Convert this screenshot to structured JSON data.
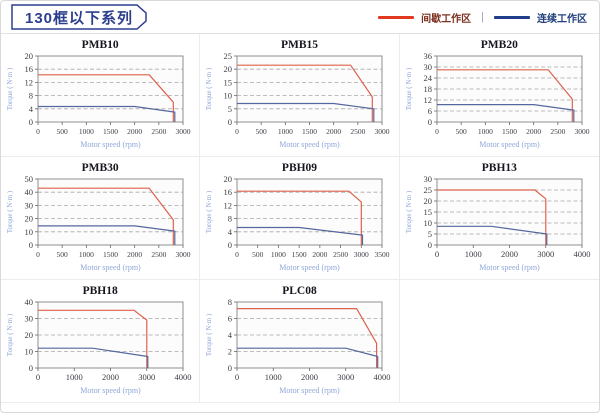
{
  "header": {
    "title": "130框以下系列",
    "legend": [
      {
        "key": "intermittent",
        "label": "间歇工作区",
        "color": "#e03a20"
      },
      {
        "key": "continuous",
        "label": "连续工作区",
        "color": "#1f3e8c"
      }
    ],
    "legend_separator": "|"
  },
  "colors": {
    "chart_red": "#dd614c",
    "chart_blue": "#55689d",
    "axis_label_blue": "#8ea6d8",
    "title_navy": "#2c3f8f"
  },
  "chart_data": [
    {
      "type": "line",
      "title": "PMB10",
      "xlabel": "Motor speed (rpm)",
      "ylabel": "Torque ( N·m )",
      "xlim": [
        0,
        3000
      ],
      "ylim": [
        0,
        20
      ],
      "x_ticks": [
        0,
        500,
        1000,
        1500,
        2000,
        2500,
        3000
      ],
      "y_ticks": [
        0,
        4,
        8,
        12,
        16,
        20
      ],
      "series": [
        {
          "key": "intermittent",
          "name": "间歇工作区",
          "color": "#dd614c",
          "points": [
            [
              0,
              14.3
            ],
            [
              2300,
              14.3
            ],
            [
              2800,
              6
            ],
            [
              2800,
              0
            ]
          ]
        },
        {
          "key": "continuous",
          "name": "连续工作区",
          "color": "#55689d",
          "points": [
            [
              0,
              4.7
            ],
            [
              2000,
              4.7
            ],
            [
              2830,
              3
            ],
            [
              2830,
              0
            ]
          ]
        }
      ]
    },
    {
      "type": "line",
      "title": "PMB15",
      "xlabel": "Motor speed (rpm)",
      "ylabel": "Torque ( N·m )",
      "xlim": [
        0,
        3000
      ],
      "ylim": [
        0,
        25
      ],
      "x_ticks": [
        0,
        500,
        1000,
        1500,
        2000,
        2500,
        3000
      ],
      "y_ticks": [
        0,
        5,
        10,
        15,
        20,
        25
      ],
      "series": [
        {
          "key": "intermittent",
          "name": "间歇工作区",
          "color": "#dd614c",
          "points": [
            [
              0,
              21.5
            ],
            [
              2350,
              21.5
            ],
            [
              2800,
              9.5
            ],
            [
              2800,
              0
            ]
          ]
        },
        {
          "key": "continuous",
          "name": "连续工作区",
          "color": "#55689d",
          "points": [
            [
              0,
              7
            ],
            [
              2000,
              7
            ],
            [
              2830,
              5
            ],
            [
              2830,
              0
            ]
          ]
        }
      ]
    },
    {
      "type": "line",
      "title": "PMB20",
      "xlabel": "Motor speed (rpm)",
      "ylabel": "Torque ( N·m )",
      "xlim": [
        0,
        3000
      ],
      "ylim": [
        0,
        36
      ],
      "x_ticks": [
        0,
        500,
        1000,
        1500,
        2000,
        2500,
        3000
      ],
      "y_ticks": [
        0,
        6,
        12,
        18,
        24,
        30,
        36
      ],
      "series": [
        {
          "key": "intermittent",
          "name": "间歇工作区",
          "color": "#dd614c",
          "points": [
            [
              0,
              28.5
            ],
            [
              2300,
              28.5
            ],
            [
              2800,
              12.5
            ],
            [
              2800,
              0
            ]
          ]
        },
        {
          "key": "continuous",
          "name": "连续工作区",
          "color": "#55689d",
          "points": [
            [
              0,
              9.5
            ],
            [
              2000,
              9.5
            ],
            [
              2830,
              6.5
            ],
            [
              2830,
              0
            ]
          ]
        }
      ]
    },
    {
      "type": "line",
      "title": "PMB30",
      "xlabel": "Motor speed (rpm)",
      "ylabel": "Torque ( N·m )",
      "xlim": [
        0,
        3000
      ],
      "ylim": [
        0,
        50
      ],
      "x_ticks": [
        0,
        500,
        1000,
        1500,
        2000,
        2500,
        3000
      ],
      "y_ticks": [
        0,
        10,
        20,
        30,
        40,
        50
      ],
      "series": [
        {
          "key": "intermittent",
          "name": "间歇工作区",
          "color": "#dd614c",
          "points": [
            [
              0,
              43
            ],
            [
              2300,
              43
            ],
            [
              2800,
              19
            ],
            [
              2800,
              0
            ]
          ]
        },
        {
          "key": "continuous",
          "name": "连续工作区",
          "color": "#55689d",
          "points": [
            [
              0,
              14.5
            ],
            [
              2000,
              14.5
            ],
            [
              2830,
              10.5
            ],
            [
              2830,
              0
            ]
          ]
        }
      ]
    },
    {
      "type": "line",
      "title": "PBH09",
      "xlabel": "Motor speed (rpm)",
      "ylabel": "Torque ( N·m )",
      "xlim": [
        0,
        3500
      ],
      "ylim": [
        0,
        20
      ],
      "x_ticks": [
        0,
        500,
        1000,
        1500,
        2000,
        2500,
        3000,
        3500
      ],
      "y_ticks": [
        0,
        4,
        8,
        12,
        16,
        20
      ],
      "series": [
        {
          "key": "intermittent",
          "name": "间歇工作区",
          "color": "#dd614c",
          "points": [
            [
              0,
              16.3
            ],
            [
              2700,
              16.3
            ],
            [
              3000,
              13
            ],
            [
              3000,
              0
            ]
          ]
        },
        {
          "key": "continuous",
          "name": "连续工作区",
          "color": "#55689d",
          "points": [
            [
              0,
              5.3
            ],
            [
              1500,
              5.3
            ],
            [
              3030,
              3
            ],
            [
              3030,
              0
            ]
          ]
        }
      ]
    },
    {
      "type": "line",
      "title": "PBH13",
      "xlabel": "Motor speed (rpm)",
      "ylabel": "Torque ( N·m )",
      "xlim": [
        0,
        4000
      ],
      "ylim": [
        0,
        30
      ],
      "x_ticks": [
        0,
        1000,
        2000,
        3000,
        4000
      ],
      "y_ticks": [
        0,
        5,
        10,
        15,
        20,
        25,
        30
      ],
      "series": [
        {
          "key": "intermittent",
          "name": "间歇工作区",
          "color": "#dd614c",
          "points": [
            [
              0,
              25
            ],
            [
              2700,
              25
            ],
            [
              3000,
              21
            ],
            [
              3000,
              0
            ]
          ]
        },
        {
          "key": "continuous",
          "name": "连续工作区",
          "color": "#55689d",
          "points": [
            [
              0,
              8.5
            ],
            [
              1500,
              8.5
            ],
            [
              3030,
              5
            ],
            [
              3030,
              0
            ]
          ]
        }
      ]
    },
    {
      "type": "line",
      "title": "PBH18",
      "xlabel": "Motor speed (rpm)",
      "ylabel": "Torque ( N·m )",
      "xlim": [
        0,
        4000
      ],
      "ylim": [
        0,
        40
      ],
      "x_ticks": [
        0,
        1000,
        2000,
        3000,
        4000
      ],
      "y_ticks": [
        0,
        10,
        20,
        30,
        40
      ],
      "series": [
        {
          "key": "intermittent",
          "name": "间歇工作区",
          "color": "#dd614c",
          "points": [
            [
              0,
              35
            ],
            [
              2650,
              35
            ],
            [
              3000,
              29
            ],
            [
              3000,
              0
            ]
          ]
        },
        {
          "key": "continuous",
          "name": "连续工作区",
          "color": "#55689d",
          "points": [
            [
              0,
              12
            ],
            [
              1500,
              12
            ],
            [
              3030,
              7
            ],
            [
              3030,
              0
            ]
          ]
        }
      ]
    },
    {
      "type": "line",
      "title": "PLC08",
      "xlabel": "Motor speed (rpm)",
      "ylabel": "Torque ( N·m )",
      "xlim": [
        0,
        4000
      ],
      "ylim": [
        0,
        8
      ],
      "x_ticks": [
        0,
        1000,
        2000,
        3000,
        4000
      ],
      "y_ticks": [
        0,
        2,
        4,
        6,
        8
      ],
      "series": [
        {
          "key": "intermittent",
          "name": "间歇工作区",
          "color": "#dd614c",
          "points": [
            [
              0,
              7.2
            ],
            [
              3300,
              7.2
            ],
            [
              3850,
              3
            ],
            [
              3850,
              0
            ]
          ]
        },
        {
          "key": "continuous",
          "name": "连续工作区",
          "color": "#55689d",
          "points": [
            [
              0,
              2.4
            ],
            [
              3000,
              2.4
            ],
            [
              3880,
              1.4
            ],
            [
              3880,
              0
            ]
          ]
        }
      ]
    }
  ]
}
